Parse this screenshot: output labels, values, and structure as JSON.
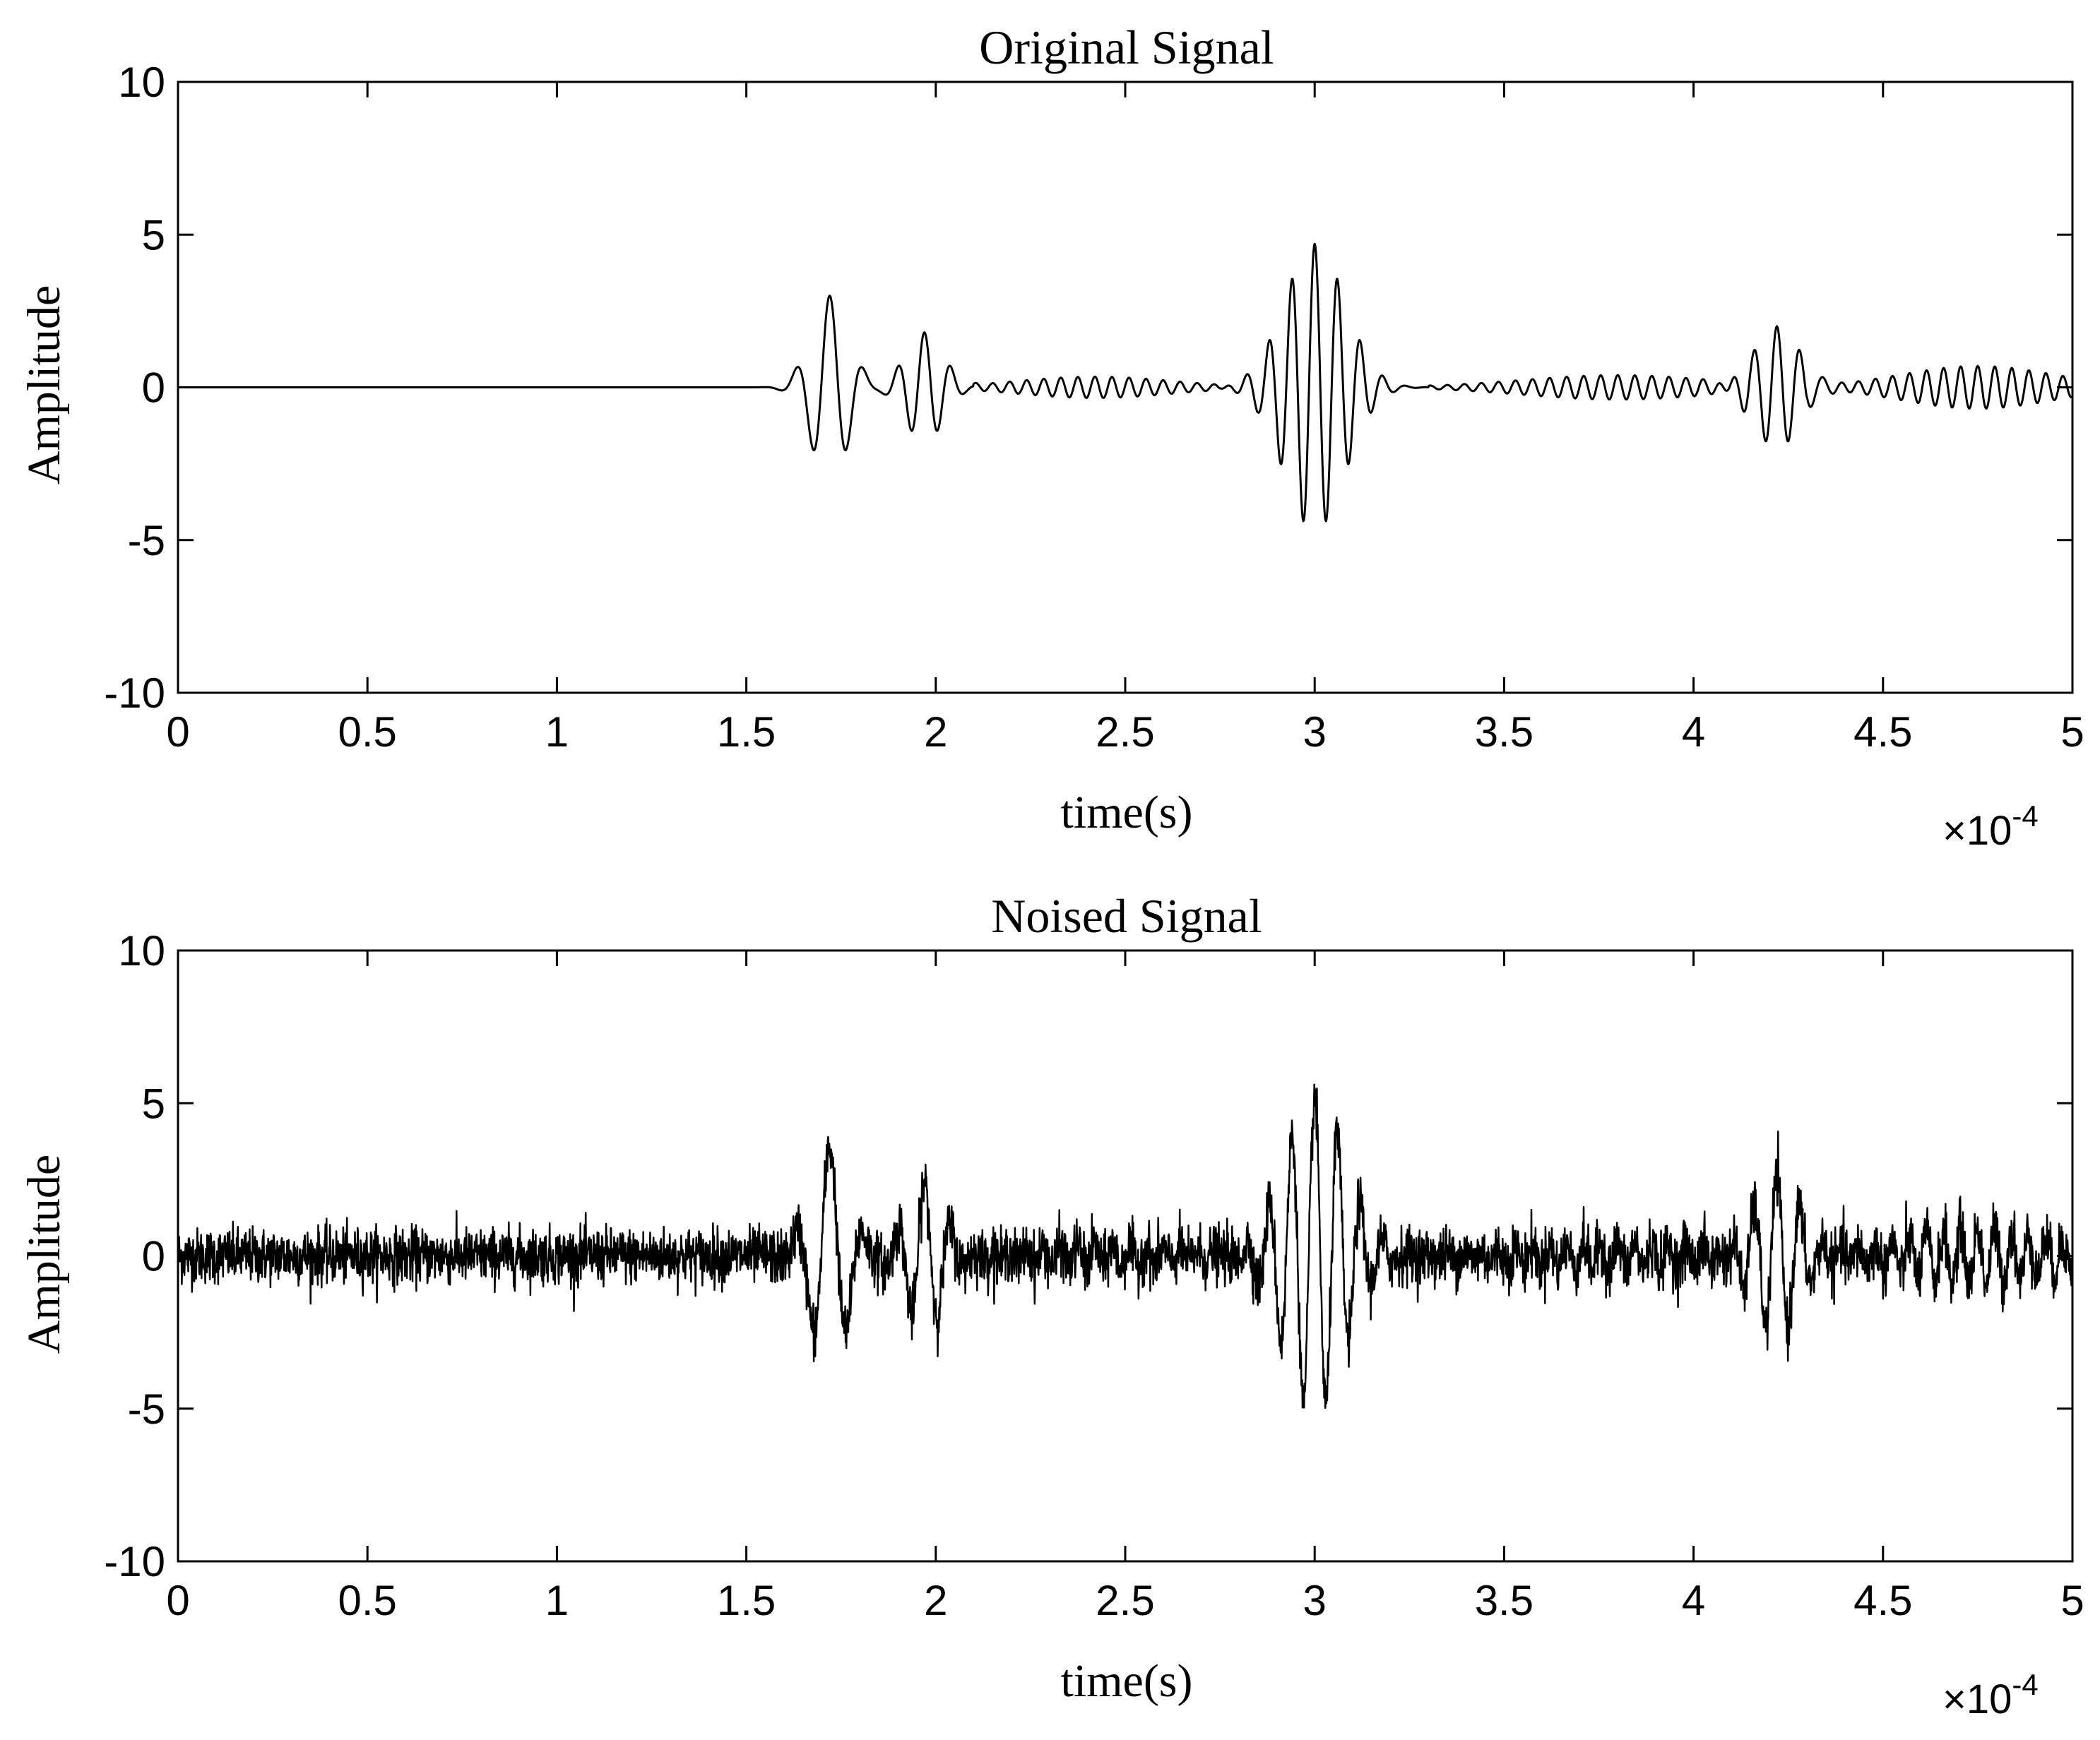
{
  "chart_data": [
    {
      "type": "line",
      "title": "Original Signal",
      "xlabel": "time(s)",
      "ylabel": "Amplitude",
      "x_exponent_base": "×10",
      "x_exponent_power": "-4",
      "xlim": [
        0,
        5
      ],
      "ylim": [
        -10,
        10
      ],
      "xticks": [
        "0",
        "0.5",
        "1",
        "1.5",
        "2",
        "2.5",
        "3",
        "3.5",
        "4",
        "4.5",
        "5"
      ],
      "yticks": [
        "10",
        "5",
        "0",
        "-5",
        "-10"
      ],
      "grid": false,
      "x_units": "time ×10^-4 s",
      "noise_amplitude": 0,
      "series": [
        {
          "color": "#000000",
          "packets": [
            {
              "t_start": 1.55,
              "t_end": 2.12,
              "segments": [
                {
                  "center": 1.72,
                  "sigma": 0.05,
                  "amp": 3.0,
                  "period": 0.09
                },
                {
                  "center": 1.97,
                  "sigma": 0.05,
                  "amp": 1.8,
                  "period": 0.07
                }
              ]
            },
            {
              "t_start": 2.15,
              "t_end": 2.8,
              "segments": [
                {
                  "center": 2.42,
                  "sigma": 0.2,
                  "amp": 0.35,
                  "period": 0.045
                }
              ]
            },
            {
              "t_start": 2.8,
              "t_end": 3.35,
              "segments": [
                {
                  "center": 3.0,
                  "sigma": 0.08,
                  "amp": 4.7,
                  "period": 0.06
                }
              ]
            },
            {
              "t_start": 3.35,
              "t_end": 4.1,
              "segments": [
                {
                  "center": 3.8,
                  "sigma": 0.25,
                  "amp": 0.4,
                  "period": 0.045
                }
              ]
            },
            {
              "t_start": 4.05,
              "t_end": 4.4,
              "segments": [
                {
                  "center": 4.22,
                  "sigma": 0.06,
                  "amp": 2.0,
                  "period": 0.06
                }
              ]
            },
            {
              "t_start": 4.35,
              "t_end": 5.0,
              "segments": [
                {
                  "center": 4.75,
                  "sigma": 0.2,
                  "amp": 0.7,
                  "period": 0.045
                }
              ]
            }
          ]
        }
      ]
    },
    {
      "type": "line",
      "title": "Noised Signal",
      "xlabel": "time(s)",
      "ylabel": "Amplitude",
      "x_exponent_base": "×10",
      "x_exponent_power": "-4",
      "xlim": [
        0,
        5
      ],
      "ylim": [
        -10,
        10
      ],
      "xticks": [
        "0",
        "0.5",
        "1",
        "1.5",
        "2",
        "2.5",
        "3",
        "3.5",
        "4",
        "4.5",
        "5"
      ],
      "yticks": [
        "10",
        "5",
        "0",
        "-5",
        "-10"
      ],
      "grid": false,
      "x_units": "time ×10^-4 s",
      "noise_amplitude": 1.0,
      "series": [
        {
          "color": "#000000",
          "packets": [
            {
              "t_start": 1.55,
              "t_end": 2.12,
              "segments": [
                {
                  "center": 1.72,
                  "sigma": 0.05,
                  "amp": 3.6,
                  "period": 0.09
                },
                {
                  "center": 1.97,
                  "sigma": 0.05,
                  "amp": 2.4,
                  "period": 0.07
                }
              ]
            },
            {
              "t_start": 2.15,
              "t_end": 2.8,
              "segments": [
                {
                  "center": 2.42,
                  "sigma": 0.2,
                  "amp": 0.35,
                  "period": 0.045
                }
              ]
            },
            {
              "t_start": 2.8,
              "t_end": 3.35,
              "segments": [
                {
                  "center": 3.0,
                  "sigma": 0.08,
                  "amp": 5.2,
                  "period": 0.06
                }
              ]
            },
            {
              "t_start": 3.35,
              "t_end": 4.1,
              "segments": [
                {
                  "center": 3.8,
                  "sigma": 0.25,
                  "amp": 0.4,
                  "period": 0.045
                }
              ]
            },
            {
              "t_start": 4.05,
              "t_end": 4.4,
              "segments": [
                {
                  "center": 4.22,
                  "sigma": 0.06,
                  "amp": 2.6,
                  "period": 0.06
                }
              ]
            },
            {
              "t_start": 4.35,
              "t_end": 5.0,
              "segments": [
                {
                  "center": 4.75,
                  "sigma": 0.2,
                  "amp": 0.9,
                  "period": 0.045
                }
              ]
            }
          ]
        }
      ]
    }
  ]
}
